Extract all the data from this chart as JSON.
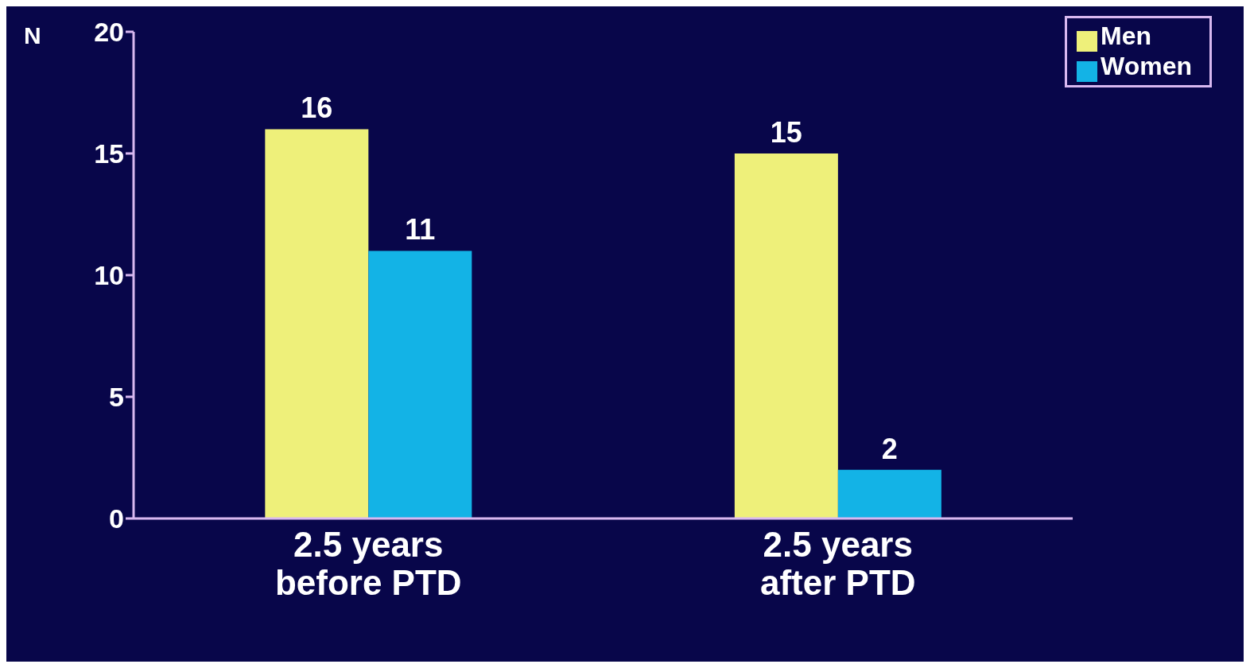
{
  "chart_data": {
    "type": "bar",
    "ylabel": "N",
    "categories": [
      "2.5 years\nbefore PTD",
      "2.5 years\nafter PTD"
    ],
    "series": [
      {
        "name": "Men",
        "color": "#eef07a",
        "values": [
          16,
          15
        ]
      },
      {
        "name": "Women",
        "color": "#13b3e6",
        "values": [
          11,
          2
        ]
      }
    ],
    "ylim": [
      0,
      20
    ],
    "yticks": [
      0,
      5,
      10,
      15,
      20
    ],
    "grid": false,
    "legend": "top right",
    "data_labels": true
  }
}
